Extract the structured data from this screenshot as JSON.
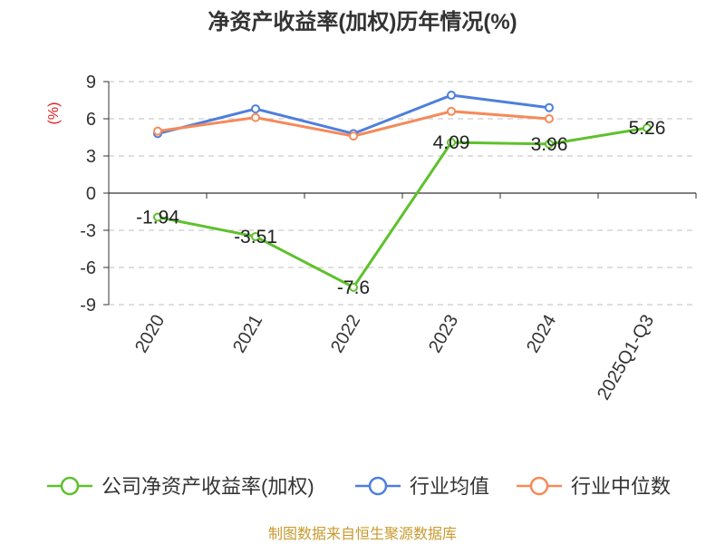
{
  "chart_data": {
    "type": "line",
    "title": "净资产收益率(加权)历年情况(%)",
    "ylabel": "(%)",
    "categories": [
      "2020",
      "2021",
      "2022",
      "2023",
      "2024",
      "2025Q1-Q3"
    ],
    "ylim": [
      -9,
      9
    ],
    "yticks": [
      9,
      6,
      3,
      0,
      -3,
      -6,
      -9
    ],
    "grid": true,
    "legend_placement": "bottom",
    "series": [
      {
        "name": "公司净资产收益率(加权)",
        "color": "#5ec12d",
        "values": [
          -1.94,
          -3.51,
          -7.6,
          4.09,
          3.96,
          5.26
        ],
        "labels": [
          "-1.94",
          "-3.51",
          "-7.6",
          "4.09",
          "3.96",
          "5.26"
        ]
      },
      {
        "name": "行业均值",
        "color": "#4e7fdc",
        "values": [
          4.8,
          6.8,
          4.8,
          7.9,
          6.9,
          null
        ]
      },
      {
        "name": "行业中位数",
        "color": "#f58a5a",
        "values": [
          5.0,
          6.1,
          4.6,
          6.6,
          6.0,
          null
        ]
      }
    ]
  },
  "source": {
    "text": "制图数据来自恒生聚源数据库",
    "color": "#c89a2e"
  },
  "colors": {
    "unit_label": "#e02020",
    "grid": "#cccccc",
    "axis": "#333333"
  }
}
